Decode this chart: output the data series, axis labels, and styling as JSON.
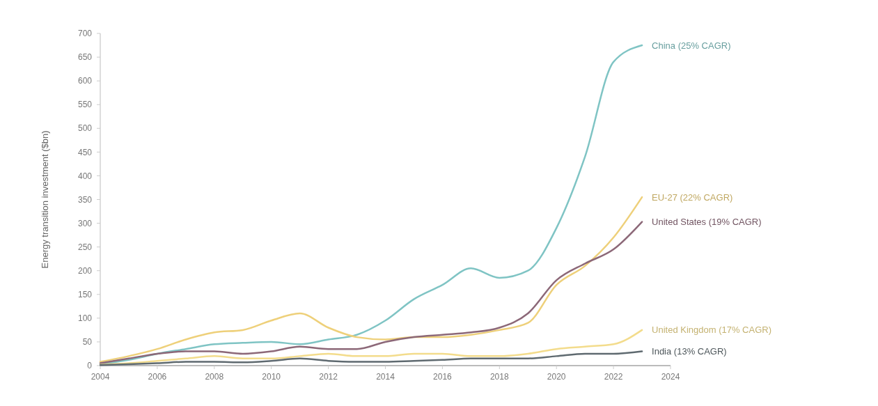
{
  "chart_data": {
    "type": "line",
    "ylabel": "Energy transition investment ($bn)",
    "x": [
      2004,
      2005,
      2006,
      2007,
      2008,
      2009,
      2010,
      2011,
      2012,
      2013,
      2014,
      2015,
      2016,
      2017,
      2018,
      2019,
      2020,
      2021,
      2022,
      2023
    ],
    "xlim": [
      2004,
      2024
    ],
    "xticks": [
      2004,
      2006,
      2008,
      2010,
      2012,
      2014,
      2016,
      2018,
      2020,
      2022,
      2024
    ],
    "ylim": [
      0,
      700
    ],
    "yticks": [
      0,
      50,
      100,
      150,
      200,
      250,
      300,
      350,
      400,
      450,
      500,
      550,
      600,
      650,
      700
    ],
    "grid": false,
    "marker": "none",
    "line_style": "solid",
    "series": [
      {
        "name": "China (25% CAGR)",
        "color": "#7fc4c4",
        "values": [
          3,
          12,
          25,
          35,
          45,
          48,
          50,
          45,
          55,
          65,
          95,
          140,
          170,
          205,
          185,
          200,
          290,
          440,
          640,
          675
        ]
      },
      {
        "name": "EU-27 (22% CAGR)",
        "color": "#eed07a",
        "values": [
          8,
          20,
          35,
          55,
          70,
          75,
          95,
          110,
          80,
          60,
          55,
          60,
          60,
          65,
          75,
          90,
          170,
          210,
          270,
          355
        ]
      },
      {
        "name": "United States (19% CAGR)",
        "color": "#8c6878",
        "values": [
          5,
          15,
          25,
          30,
          30,
          25,
          30,
          40,
          35,
          35,
          50,
          60,
          65,
          70,
          80,
          110,
          180,
          215,
          245,
          303
        ]
      },
      {
        "name": "United Kingdom (17% CAGR)",
        "color": "#f3dc8c",
        "values": [
          2,
          5,
          10,
          15,
          20,
          15,
          15,
          20,
          25,
          20,
          20,
          25,
          25,
          20,
          20,
          25,
          35,
          40,
          45,
          75
        ]
      },
      {
        "name": "India (13% CAGR)",
        "color": "#5f6a70",
        "values": [
          1,
          3,
          5,
          8,
          8,
          7,
          10,
          15,
          10,
          8,
          8,
          10,
          12,
          15,
          15,
          15,
          20,
          25,
          25,
          30
        ]
      }
    ]
  }
}
